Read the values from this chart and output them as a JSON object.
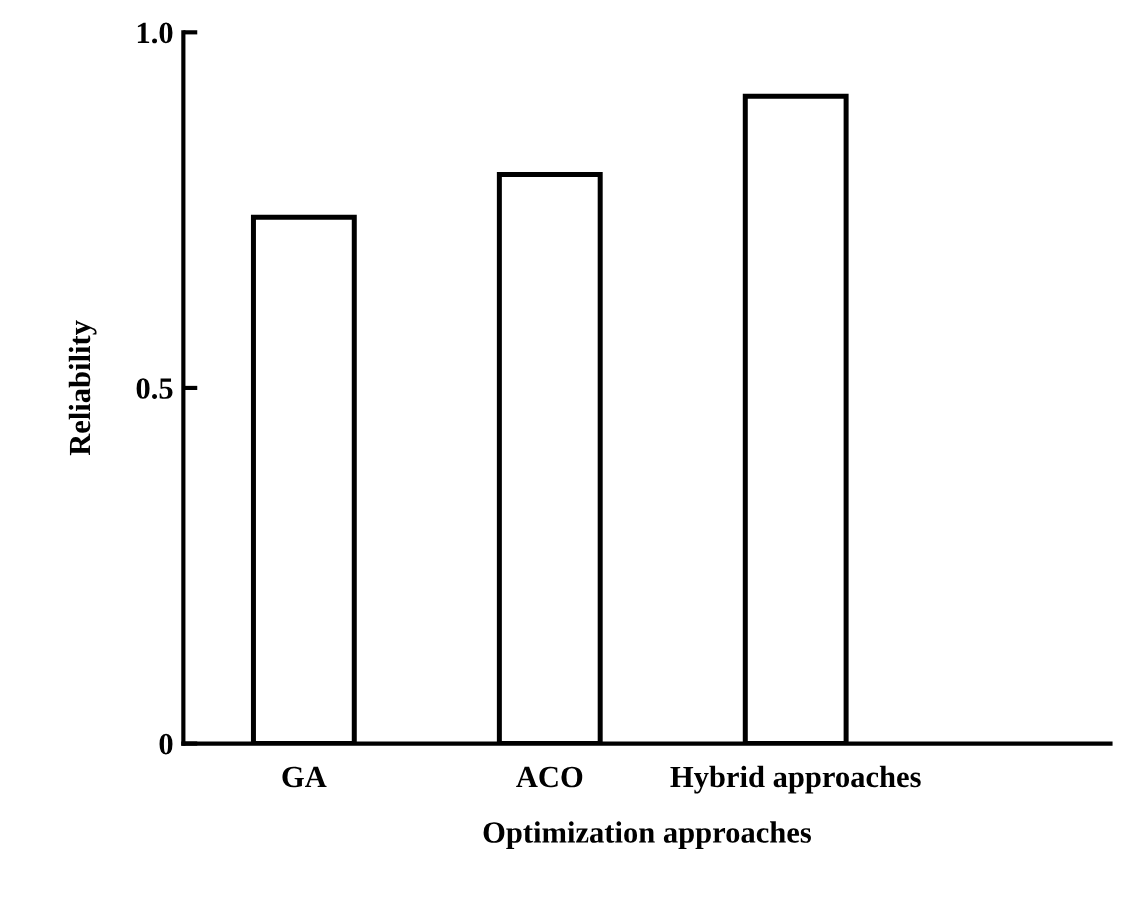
{
  "chart_data": {
    "type": "bar",
    "xlabel": "Optimization approaches",
    "ylabel": "Reliability",
    "categories": [
      "GA",
      "ACO",
      "Hybrid approaches"
    ],
    "values": [
      0.74,
      0.8,
      0.91
    ],
    "color": "#ffffff",
    "ylim": [
      0,
      1.0
    ],
    "yticks": [
      0,
      0.5,
      {
        "value": 1.0,
        "label": "1.0"
      }
    ],
    "grid": false,
    "legend": false
  }
}
